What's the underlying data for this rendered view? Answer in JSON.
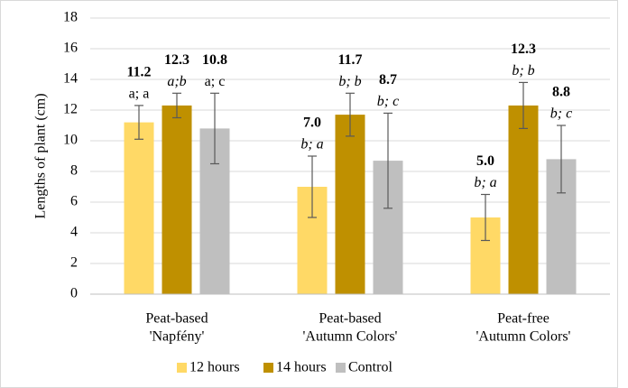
{
  "chart_data": {
    "type": "bar",
    "y_label": "Lengths of plant (cm)",
    "categories": [
      [
        "Peat-based",
        "'Napfény'"
      ],
      [
        "Peat-based",
        "'Autumn Colors'"
      ],
      [
        "Peat-free",
        "'Autumn Colors'"
      ]
    ],
    "series": [
      {
        "name": "12 hours",
        "color": "#ffd966",
        "values": [
          11.2,
          7.0,
          5.0
        ],
        "value_labels": [
          "11.2",
          "7.0",
          "5.0"
        ],
        "errors": [
          1.1,
          2.0,
          1.5
        ],
        "letters": [
          "a; a",
          "b; a",
          "b; a"
        ],
        "letters_italic": [
          false,
          true,
          true
        ]
      },
      {
        "name": "14 hours",
        "color": "#bf9000",
        "values": [
          12.3,
          11.7,
          12.3
        ],
        "value_labels": [
          "12.3",
          "11.7",
          "12.3"
        ],
        "errors": [
          0.8,
          1.4,
          1.5
        ],
        "letters": [
          "a;b",
          "b; b",
          "b; b"
        ],
        "letters_italic": [
          true,
          true,
          true
        ]
      },
      {
        "name": "Control",
        "color": "#bfbfbf",
        "values": [
          10.8,
          8.7,
          8.8
        ],
        "value_labels": [
          "10.8",
          "8.7",
          "8.8"
        ],
        "errors": [
          2.3,
          3.1,
          2.2
        ],
        "letters": [
          "a; c",
          "b; c",
          "b; c"
        ],
        "letters_italic": [
          false,
          true,
          true
        ]
      }
    ],
    "ylim": [
      0,
      18
    ],
    "yticks": [
      0,
      2,
      4,
      6,
      8,
      10,
      12,
      14,
      16,
      18
    ],
    "grid": true,
    "legend": "bottom"
  }
}
